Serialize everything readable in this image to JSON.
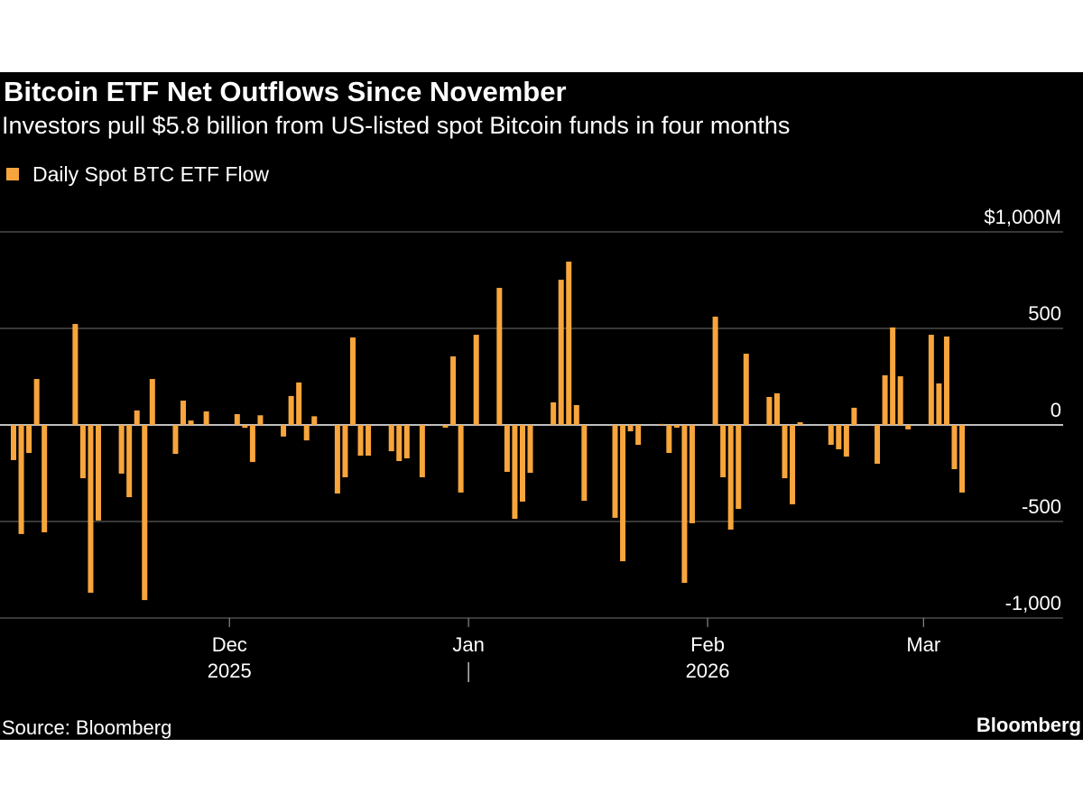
{
  "chart_data": {
    "type": "bar",
    "title": "Bitcoin ETF Net Outflows Since November",
    "subtitle": "Investors pull $5.8 billion from US-listed spot Bitcoin funds in four months",
    "source": "Source: Bloomberg",
    "brand": "Bloomberg",
    "categories": [
      null,
      null,
      null,
      null,
      null,
      null,
      null,
      null,
      null,
      null,
      null,
      null,
      null,
      null,
      null,
      null,
      null,
      null,
      null,
      null,
      null,
      null,
      null,
      null,
      null,
      null,
      null,
      null,
      null,
      null,
      null,
      null,
      null,
      null,
      null,
      null,
      null,
      null,
      null,
      null,
      null,
      null,
      null,
      null,
      null,
      null,
      null,
      null,
      null,
      null,
      null,
      null,
      null,
      null,
      null,
      null,
      null,
      null,
      null,
      null,
      null,
      null,
      null,
      null,
      null,
      null,
      null,
      null,
      null,
      null,
      null,
      null,
      null,
      null,
      null,
      null,
      null,
      null,
      null,
      null,
      null,
      null,
      null,
      null,
      null,
      null,
      null,
      null,
      null,
      null,
      null,
      null,
      null,
      null,
      null,
      null,
      null,
      null,
      null,
      null,
      null,
      null,
      null,
      null,
      null,
      null,
      null,
      null,
      null,
      null,
      null,
      null,
      null,
      null,
      null,
      null,
      null,
      null,
      null,
      null,
      null,
      null,
      null,
      null
    ],
    "series": [
      {
        "name": "Daily Spot BTC ETF Flow",
        "color": "#f7a53c",
        "values": [
          -182,
          -565,
          -145,
          238,
          -556,
          null,
          null,
          null,
          523,
          -276,
          -869,
          -495,
          null,
          null,
          -252,
          -374,
          75,
          -907,
          238,
          null,
          null,
          -150,
          126,
          23,
          null,
          70,
          null,
          null,
          null,
          56,
          -15,
          -192,
          50,
          null,
          null,
          -60,
          150,
          220,
          -80,
          45,
          null,
          null,
          -355,
          -271,
          453,
          -159,
          -159,
          null,
          null,
          -136,
          -187,
          -173,
          null,
          -271,
          null,
          null,
          -14,
          355,
          -350,
          null,
          467,
          null,
          null,
          710,
          -243,
          -486,
          -397,
          -248,
          null,
          null,
          117,
          752,
          846,
          103,
          -393,
          null,
          null,
          null,
          -481,
          -706,
          -33,
          -103,
          null,
          null,
          5,
          -145,
          -14,
          -818,
          -509,
          null,
          null,
          561,
          -271,
          -542,
          -435,
          369,
          null,
          null,
          145,
          164,
          -276,
          -411,
          14,
          null,
          null,
          null,
          -103,
          -126,
          -164,
          89,
          null,
          null,
          -201,
          257,
          505,
          252,
          -23,
          null,
          null,
          467,
          215,
          458,
          -229,
          -350
        ]
      }
    ],
    "ylim": [
      -1000,
      1000
    ],
    "yticks": [
      {
        "value": 1000,
        "label": "$1,000M"
      },
      500,
      0,
      -500,
      {
        "value": -1000,
        "label": "-1,000"
      }
    ],
    "xticks": [
      {
        "value": 28,
        "label": "Dec"
      },
      {
        "value": 59,
        "label": "Jan"
      },
      {
        "value": 90,
        "label": "Feb"
      },
      {
        "value": 118,
        "label": "Mar"
      }
    ],
    "year_labels": [
      {
        "value": 28,
        "label": "2025"
      },
      {
        "value": 90,
        "label": "2026"
      }
    ],
    "grid": true
  }
}
